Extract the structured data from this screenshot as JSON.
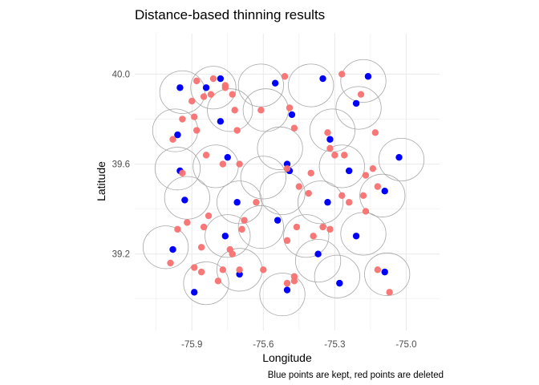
{
  "chart_data": {
    "type": "scatter",
    "title": "Distance-based thinning results",
    "xlabel": "Longitude",
    "ylabel": "Latitude",
    "caption": "Blue points are kept, red points are deleted",
    "x_ticks": [
      "-75.9",
      "-75.6",
      "-75.3",
      "-75.0"
    ],
    "y_ticks": [
      "39.2",
      "39.6",
      "40.0"
    ],
    "x_tick_values": [
      -75.9,
      -75.6,
      -75.3,
      -75.0
    ],
    "y_tick_values": [
      39.2,
      39.6,
      40.0
    ],
    "xlim": [
      -76.14,
      -74.86
    ],
    "ylim": [
      38.86,
      40.18
    ],
    "grid": true,
    "circle_radius_deg": 0.095,
    "colors": {
      "kept": "#0000ff",
      "deleted": "#f87171",
      "circle": "#a6a6a6",
      "grid": "#ebebeb"
    },
    "series": [
      {
        "name": "kept",
        "points": [
          [
            -75.95,
            39.94
          ],
          [
            -75.78,
            39.98
          ],
          [
            -75.84,
            39.94
          ],
          [
            -75.55,
            39.96
          ],
          [
            -75.35,
            39.98
          ],
          [
            -75.16,
            39.99
          ],
          [
            -75.21,
            39.87
          ],
          [
            -75.48,
            39.82
          ],
          [
            -75.96,
            39.73
          ],
          [
            -75.78,
            39.79
          ],
          [
            -75.32,
            39.71
          ],
          [
            -75.03,
            39.63
          ],
          [
            -75.75,
            39.63
          ],
          [
            -75.5,
            39.6
          ],
          [
            -75.95,
            39.57
          ],
          [
            -75.24,
            39.57
          ],
          [
            -75.71,
            39.43
          ],
          [
            -75.49,
            39.57
          ],
          [
            -75.09,
            39.48
          ],
          [
            -75.93,
            39.44
          ],
          [
            -75.33,
            39.43
          ],
          [
            -75.54,
            39.35
          ],
          [
            -75.76,
            39.28
          ],
          [
            -75.21,
            39.28
          ],
          [
            -75.98,
            39.22
          ],
          [
            -75.37,
            39.2
          ],
          [
            -75.89,
            39.03
          ],
          [
            -75.7,
            39.11
          ],
          [
            -75.5,
            39.04
          ],
          [
            -75.28,
            39.07
          ],
          [
            -75.09,
            39.12
          ]
        ]
      },
      {
        "name": "deleted",
        "points": [
          [
            -75.81,
            39.98
          ],
          [
            -75.9,
            39.88
          ],
          [
            -75.85,
            39.9
          ],
          [
            -75.76,
            39.95
          ],
          [
            -75.76,
            39.94
          ],
          [
            -75.73,
            39.91
          ],
          [
            -75.51,
            39.99
          ],
          [
            -75.27,
            40.0
          ],
          [
            -75.19,
            39.91
          ],
          [
            -75.88,
            39.97
          ],
          [
            -75.72,
            39.84
          ],
          [
            -75.82,
            39.91
          ],
          [
            -75.61,
            39.84
          ],
          [
            -75.49,
            39.85
          ],
          [
            -75.94,
            39.8
          ],
          [
            -75.89,
            39.81
          ],
          [
            -75.88,
            39.75
          ],
          [
            -75.71,
            39.75
          ],
          [
            -75.47,
            39.76
          ],
          [
            -75.33,
            39.74
          ],
          [
            -75.13,
            39.74
          ],
          [
            -75.98,
            39.71
          ],
          [
            -75.32,
            39.67
          ],
          [
            -75.3,
            39.64
          ],
          [
            -75.26,
            39.64
          ],
          [
            -75.84,
            39.64
          ],
          [
            -75.77,
            39.6
          ],
          [
            -75.7,
            39.6
          ],
          [
            -75.5,
            39.58
          ],
          [
            -75.14,
            39.58
          ],
          [
            -75.17,
            39.55
          ],
          [
            -75.94,
            39.56
          ],
          [
            -75.4,
            39.56
          ],
          [
            -75.12,
            39.5
          ],
          [
            -75.45,
            39.5
          ],
          [
            -75.63,
            39.43
          ],
          [
            -75.41,
            39.47
          ],
          [
            -75.27,
            39.46
          ],
          [
            -75.18,
            39.46
          ],
          [
            -75.24,
            39.43
          ],
          [
            -75.17,
            39.39
          ],
          [
            -75.83,
            39.37
          ],
          [
            -75.68,
            39.35
          ],
          [
            -75.92,
            39.34
          ],
          [
            -75.96,
            39.31
          ],
          [
            -75.85,
            39.32
          ],
          [
            -75.74,
            39.22
          ],
          [
            -75.5,
            39.26
          ],
          [
            -75.46,
            39.32
          ],
          [
            -75.39,
            39.28
          ],
          [
            -75.35,
            39.32
          ],
          [
            -75.32,
            39.31
          ],
          [
            -75.69,
            39.31
          ],
          [
            -75.86,
            39.23
          ],
          [
            -75.73,
            39.2
          ],
          [
            -75.99,
            39.16
          ],
          [
            -75.89,
            39.14
          ],
          [
            -75.77,
            39.13
          ],
          [
            -75.86,
            39.12
          ],
          [
            -75.7,
            39.13
          ],
          [
            -75.79,
            39.08
          ],
          [
            -75.6,
            39.13
          ],
          [
            -75.47,
            39.1
          ],
          [
            -75.47,
            39.08
          ],
          [
            -75.5,
            39.07
          ],
          [
            -75.12,
            39.13
          ],
          [
            -75.07,
            39.03
          ]
        ]
      }
    ],
    "circles": [
      [
        -75.94,
        39.92
      ],
      [
        -75.81,
        39.94
      ],
      [
        -75.61,
        39.95
      ],
      [
        -75.4,
        39.95
      ],
      [
        -75.18,
        39.97
      ],
      [
        -75.59,
        39.84
      ],
      [
        -75.2,
        39.85
      ],
      [
        -75.97,
        39.75
      ],
      [
        -75.74,
        39.84
      ],
      [
        -75.31,
        39.75
      ],
      [
        -75.53,
        39.67
      ],
      [
        -75.02,
        39.62
      ],
      [
        -75.8,
        39.59
      ],
      [
        -75.27,
        39.59
      ],
      [
        -75.96,
        39.58
      ],
      [
        -75.6,
        39.54
      ],
      [
        -75.1,
        39.46
      ],
      [
        -75.92,
        39.45
      ],
      [
        -75.7,
        39.43
      ],
      [
        -75.52,
        39.47
      ],
      [
        -75.36,
        39.43
      ],
      [
        -75.18,
        39.29
      ],
      [
        -75.61,
        39.32
      ],
      [
        -75.42,
        39.28
      ],
      [
        -75.75,
        39.28
      ],
      [
        -76.01,
        39.23
      ],
      [
        -75.37,
        39.17
      ],
      [
        -75.84,
        39.07
      ],
      [
        -75.7,
        39.13
      ],
      [
        -75.52,
        39.02
      ],
      [
        -75.29,
        39.1
      ],
      [
        -75.08,
        39.11
      ]
    ]
  }
}
